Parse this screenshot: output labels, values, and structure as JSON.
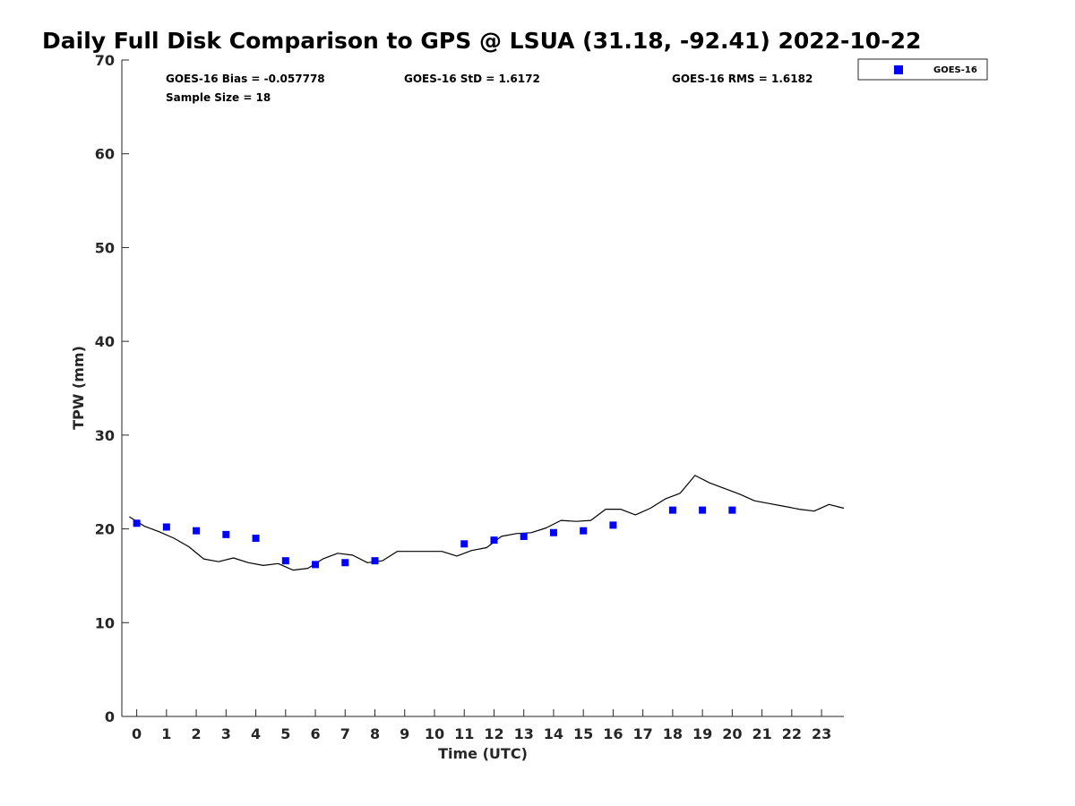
{
  "chart_data": {
    "type": "scatter",
    "title": "Daily Full Disk Comparison to GPS @ LSUA (31.18, -92.41) 2022-10-22",
    "xlabel": "Time (UTC)",
    "ylabel": "TPW (mm)",
    "xlim": [
      -0.5,
      23.75
    ],
    "ylim": [
      0,
      70
    ],
    "x_ticks": [
      0,
      1,
      2,
      3,
      4,
      5,
      6,
      7,
      8,
      9,
      10,
      11,
      12,
      13,
      14,
      15,
      16,
      17,
      18,
      19,
      20,
      21,
      22,
      23
    ],
    "x_tick_labels": [
      "0",
      "1",
      "2",
      "3",
      "4",
      "5",
      "6",
      "7",
      "8",
      "9",
      "10",
      "11",
      "12",
      "13",
      "14",
      "15",
      "16",
      "17",
      "18",
      "19",
      "20",
      "21",
      "22",
      "23"
    ],
    "y_ticks": [
      0,
      10,
      20,
      30,
      40,
      50,
      60,
      70
    ],
    "y_tick_labels": [
      "0",
      "10",
      "20",
      "30",
      "40",
      "50",
      "60",
      "70"
    ],
    "grid": false,
    "legend_position": "top-right",
    "series": [
      {
        "name": "GOES-16",
        "kind": "scatter",
        "marker": "square",
        "color": "#0000ff",
        "x": [
          0,
          1,
          2,
          3,
          4,
          5,
          6,
          7,
          8,
          11,
          12,
          13,
          14,
          15,
          16,
          18,
          19,
          20
        ],
        "y": [
          20.6,
          20.2,
          19.8,
          19.4,
          19.0,
          16.6,
          16.2,
          16.4,
          16.6,
          18.4,
          18.8,
          19.2,
          19.6,
          19.8,
          20.4,
          22.0,
          22.0,
          22.0
        ]
      },
      {
        "kind": "line",
        "color": "#000000",
        "x": [
          -0.25,
          0.25,
          0.75,
          1.25,
          1.75,
          2.25,
          2.75,
          3.25,
          3.75,
          4.25,
          4.75,
          5.25,
          5.75,
          6.25,
          6.75,
          7.25,
          7.75,
          8.25,
          8.75,
          9.25,
          9.75,
          10.25,
          10.75,
          11.25,
          11.75,
          12.25,
          12.75,
          13.25,
          13.75,
          14.25,
          14.75,
          15.25,
          15.75,
          16.25,
          16.75,
          17.25,
          17.75,
          18.25,
          18.75,
          19.25,
          19.75,
          20.25,
          20.75,
          21.25,
          21.75,
          22.25,
          22.75,
          23.25,
          23.75
        ],
        "y": [
          21.3,
          20.3,
          19.7,
          19.0,
          18.1,
          16.8,
          16.5,
          16.9,
          16.4,
          16.1,
          16.3,
          15.6,
          15.8,
          16.8,
          17.4,
          17.2,
          16.4,
          16.6,
          17.6,
          17.6,
          17.6,
          17.6,
          17.1,
          17.7,
          18.0,
          19.2,
          19.5,
          19.6,
          20.1,
          20.9,
          20.8,
          20.9,
          22.1,
          22.1,
          21.5,
          22.2,
          23.2,
          23.8,
          25.7,
          24.9,
          24.3,
          23.7,
          23.0,
          22.7,
          22.4,
          22.1,
          21.9,
          22.6,
          22.2
        ]
      }
    ],
    "stats": {
      "bias": "GOES-16 Bias = -0.057778",
      "std": "GOES-16 StD = 1.6172",
      "rms": "GOES-16 RMS = 1.6182",
      "sample_size": "Sample Size = 18"
    },
    "legend": {
      "entries": [
        "GOES-16"
      ]
    }
  }
}
